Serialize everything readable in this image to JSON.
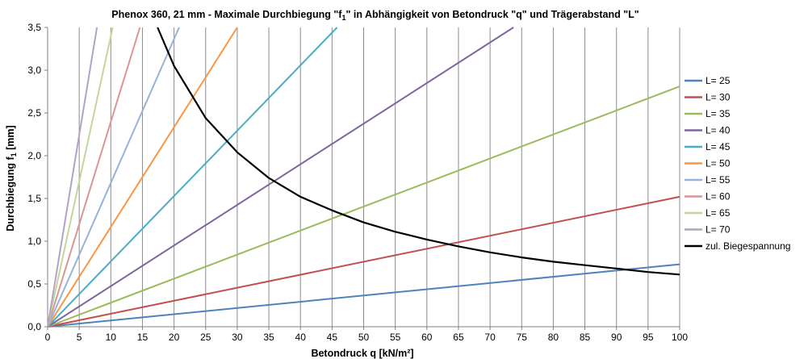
{
  "chart_data": {
    "type": "line",
    "title": "Phenox 360, 21 mm - Maximale Durchbiegung \"f",
    "title_sub": "1",
    "title_rest": "\" in Abhängigkeit von Betondruck \"q\" und Trägerabstand \"L\"",
    "xlabel": "Betondruck q [kN/m²]",
    "ylabel": "Durchbiegung f",
    "ylabel_sub": "1",
    "ylabel_rest": " [mm]",
    "xlim": [
      0,
      100
    ],
    "ylim": [
      0,
      3.5
    ],
    "x_ticks": [
      "0",
      "5",
      "10",
      "15",
      "20",
      "25",
      "30",
      "35",
      "40",
      "45",
      "50",
      "55",
      "60",
      "65",
      "70",
      "75",
      "80",
      "85",
      "90",
      "95",
      "100"
    ],
    "y_ticks": [
      "0,0",
      "0,5",
      "1,0",
      "1,5",
      "2,0",
      "2,5",
      "3,0",
      "3,5"
    ],
    "grid": {
      "vertical": true,
      "horizontal": false
    },
    "legend_position": "right",
    "series": [
      {
        "name": "L= 25",
        "color": "#4f81bd",
        "kind": "linear",
        "x": [
          0,
          100
        ],
        "y": [
          0,
          0.73
        ]
      },
      {
        "name": "L= 30",
        "color": "#c0504d",
        "kind": "linear",
        "x": [
          0,
          100
        ],
        "y": [
          0,
          1.52
        ]
      },
      {
        "name": "L= 35",
        "color": "#9bbb59",
        "kind": "linear",
        "x": [
          0,
          100
        ],
        "y": [
          0,
          2.81
        ]
      },
      {
        "name": "L= 40",
        "color": "#8064a2",
        "kind": "linear",
        "x": [
          0,
          73.7
        ],
        "y": [
          0,
          3.5
        ]
      },
      {
        "name": "L= 45",
        "color": "#4bacc6",
        "kind": "linear",
        "x": [
          0,
          45.8
        ],
        "y": [
          0,
          3.5
        ]
      },
      {
        "name": "L= 50",
        "color": "#f79646",
        "kind": "linear",
        "x": [
          0,
          30
        ],
        "y": [
          0,
          3.5
        ]
      },
      {
        "name": "L= 55",
        "color": "#95b3d7",
        "kind": "linear",
        "x": [
          0,
          20.8
        ],
        "y": [
          0,
          3.5
        ]
      },
      {
        "name": "L= 60",
        "color": "#d99694",
        "kind": "linear",
        "x": [
          0,
          14.6
        ],
        "y": [
          0,
          3.5
        ]
      },
      {
        "name": "L= 65",
        "color": "#c3d69b",
        "kind": "linear",
        "x": [
          0,
          10.3
        ],
        "y": [
          0,
          3.5
        ]
      },
      {
        "name": "L= 70",
        "color": "#b3a2c7",
        "kind": "linear",
        "x": [
          0,
          7.8
        ],
        "y": [
          0,
          3.5
        ]
      },
      {
        "name": "zul. Biegespannung",
        "color": "#000000",
        "kind": "curve",
        "x": [
          17.4,
          20,
          25,
          30,
          35,
          40,
          45,
          50,
          55,
          60,
          65,
          70,
          75,
          80,
          85,
          90,
          95,
          100
        ],
        "y": [
          3.5,
          3.05,
          2.44,
          2.04,
          1.74,
          1.52,
          1.36,
          1.22,
          1.11,
          1.02,
          0.94,
          0.87,
          0.81,
          0.76,
          0.72,
          0.68,
          0.64,
          0.61
        ]
      }
    ]
  }
}
